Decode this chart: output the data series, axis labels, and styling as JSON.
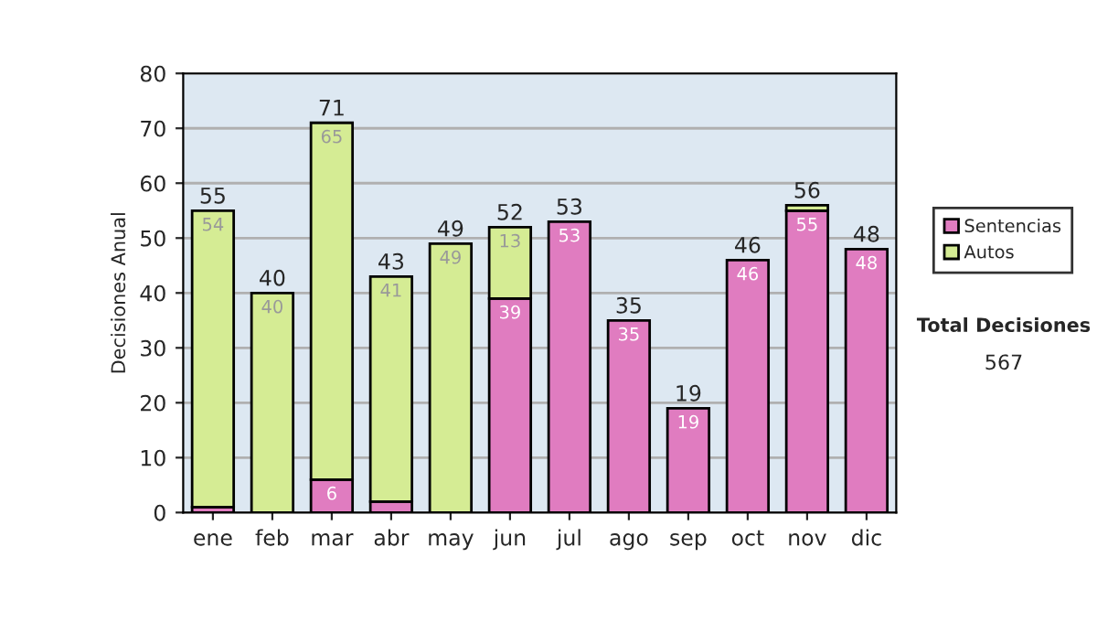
{
  "chart_data": {
    "type": "bar",
    "stacked": true,
    "ylabel": "Decisiones Anual",
    "categories": [
      "ene",
      "feb",
      "mar",
      "abr",
      "may",
      "jun",
      "jul",
      "ago",
      "sep",
      "oct",
      "nov",
      "dic"
    ],
    "series": [
      {
        "name": "Sentencias",
        "color": "#e07cc0",
        "values": [
          1,
          null,
          6,
          2,
          null,
          39,
          53,
          35,
          19,
          46,
          55,
          48
        ],
        "value_labels": [
          null,
          null,
          "6",
          null,
          null,
          "39",
          "53",
          "35",
          "19",
          "46",
          "55",
          "48"
        ]
      },
      {
        "name": "Autos",
        "color": "#d5ec94",
        "values": [
          54,
          40,
          65,
          41,
          49,
          13,
          null,
          null,
          null,
          null,
          1,
          null
        ],
        "value_labels": [
          "54",
          "40",
          "65",
          "41",
          "49",
          "13",
          null,
          null,
          null,
          null,
          null,
          null
        ]
      }
    ],
    "totals": [
      "55",
      "40",
      "71",
      "43",
      "49",
      "52",
      "53",
      "35",
      "19",
      "46",
      "56",
      "48"
    ],
    "ylim": [
      0,
      80
    ],
    "yticks": [
      0,
      10,
      20,
      30,
      40,
      50,
      60,
      70,
      80
    ],
    "grid": "y",
    "legend": "right",
    "annotations": [
      "Total Decisiones",
      "567"
    ]
  }
}
